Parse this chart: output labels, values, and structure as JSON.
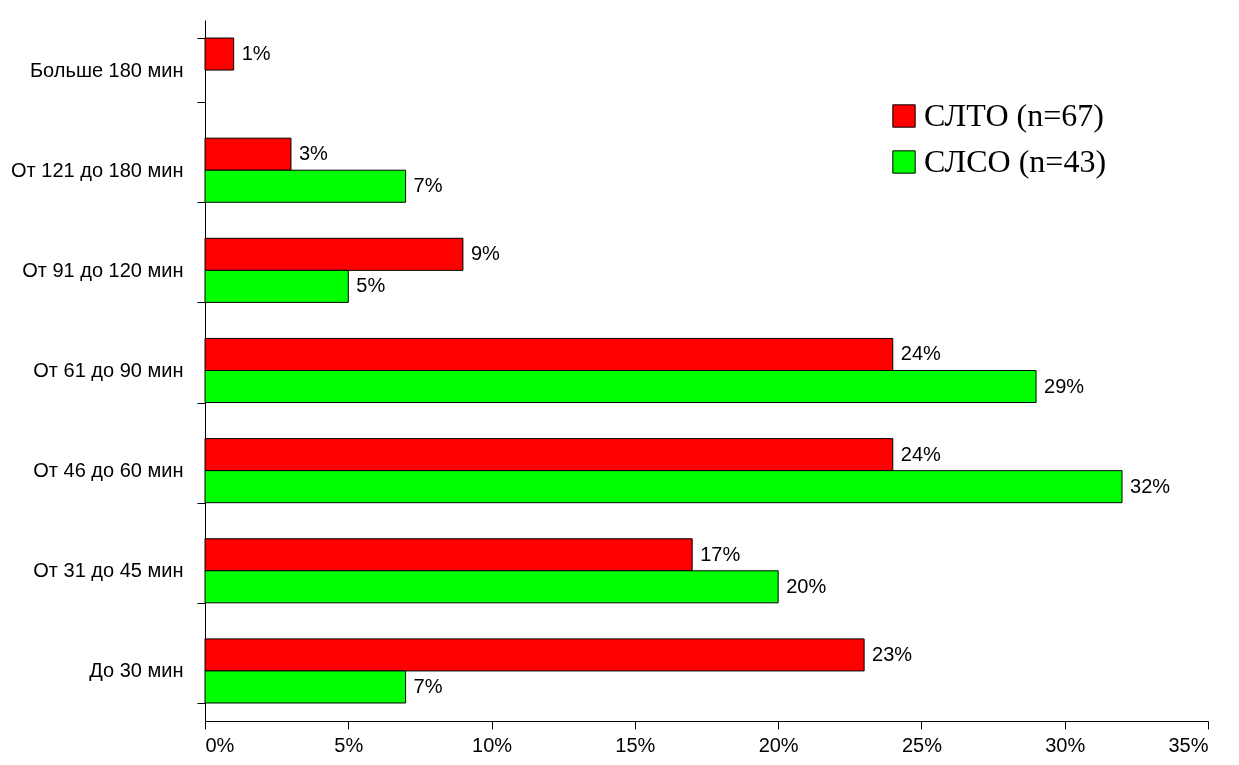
{
  "chart_data": {
    "type": "bar",
    "orientation": "horizontal",
    "categories": [
      "Больше 180 мин",
      "От 121 до 180 мин",
      "От 91 до 120 мин",
      "От 61 до 90 мин",
      "От 46 до 60 мин",
      "От 31 до 45 мин",
      "До 30 мин"
    ],
    "series": [
      {
        "name": "СЛТО    (n=67)",
        "color": "#ff0000",
        "values": [
          1,
          3,
          9,
          24,
          24,
          17,
          23
        ],
        "value_labels": [
          "1%",
          "3%",
          "9%",
          "24%",
          "24%",
          "17%",
          "23%"
        ]
      },
      {
        "name": "СЛСО  (n=43)",
        "color": "#00ff00",
        "values": [
          null,
          7,
          5,
          29,
          32,
          20,
          7
        ],
        "value_labels": [
          null,
          "7%",
          "5%",
          "29%",
          "32%",
          "20%",
          "7%"
        ]
      }
    ],
    "xlim": [
      0,
      35
    ],
    "xticks": [
      {
        "value": 0,
        "label": "0%"
      },
      {
        "value": 5,
        "label": "5%"
      },
      {
        "value": 10,
        "label": "10%"
      },
      {
        "value": 15,
        "label": "15%"
      },
      {
        "value": 20,
        "label": "20%"
      },
      {
        "value": 25,
        "label": "25%"
      },
      {
        "value": 30,
        "label": "30%"
      },
      {
        "value": 35,
        "label": "35%"
      }
    ],
    "legend": "top right",
    "grid": false
  }
}
